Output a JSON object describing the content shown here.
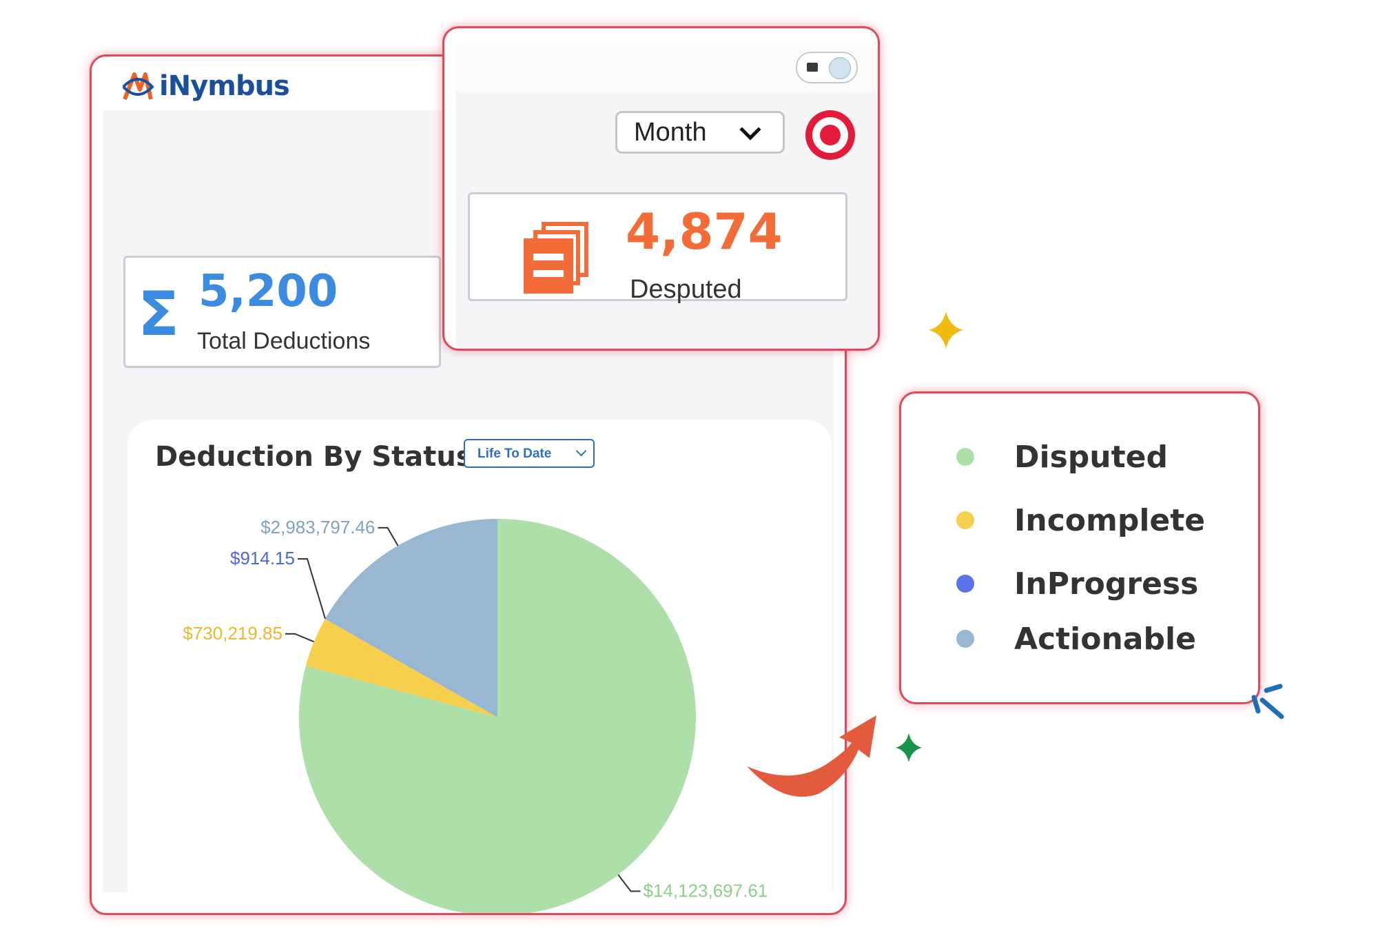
{
  "app": {
    "brand": "iNymbus"
  },
  "header": {
    "period_select": "Month",
    "customer_logo_icon": "target-bullseye-icon"
  },
  "stats": {
    "total": {
      "value": "5,200",
      "label": "Total Deductions",
      "icon": "sigma-icon"
    },
    "disputed": {
      "value": "4,874",
      "label": "Desputed",
      "icon": "documents-icon"
    }
  },
  "chart": {
    "title": "Deduction By Status",
    "range_select": "Life To Date"
  },
  "chart_data": {
    "type": "pie",
    "title": "Deduction By Status",
    "slices": [
      {
        "name": "Disputed",
        "value": 14123697.61,
        "label": "$14,123,697.61",
        "color": "#addfa8"
      },
      {
        "name": "Incomplete",
        "value": 730219.85,
        "label": "$730,219.85",
        "color": "#f6cf4d"
      },
      {
        "name": "InProgress",
        "value": 914.15,
        "label": "$914.15",
        "color": "#5b72e8"
      },
      {
        "name": "Actionable",
        "value": 2983797.46,
        "label": "$2,983,797.46",
        "color": "#97b8d0"
      }
    ],
    "legend_position": "right"
  },
  "legend": {
    "items": [
      {
        "label": "Disputed",
        "color": "#addfa8"
      },
      {
        "label": "Incomplete",
        "color": "#f6cf4d"
      },
      {
        "label": "InProgress",
        "color": "#5b72e8"
      },
      {
        "label": "Actionable",
        "color": "#97b8d0"
      }
    ]
  },
  "colors": {
    "accent_blue": "#3b8be0",
    "accent_orange": "#f36b36",
    "card_border": "#e04a5a",
    "arrow": "#e35a3c"
  }
}
